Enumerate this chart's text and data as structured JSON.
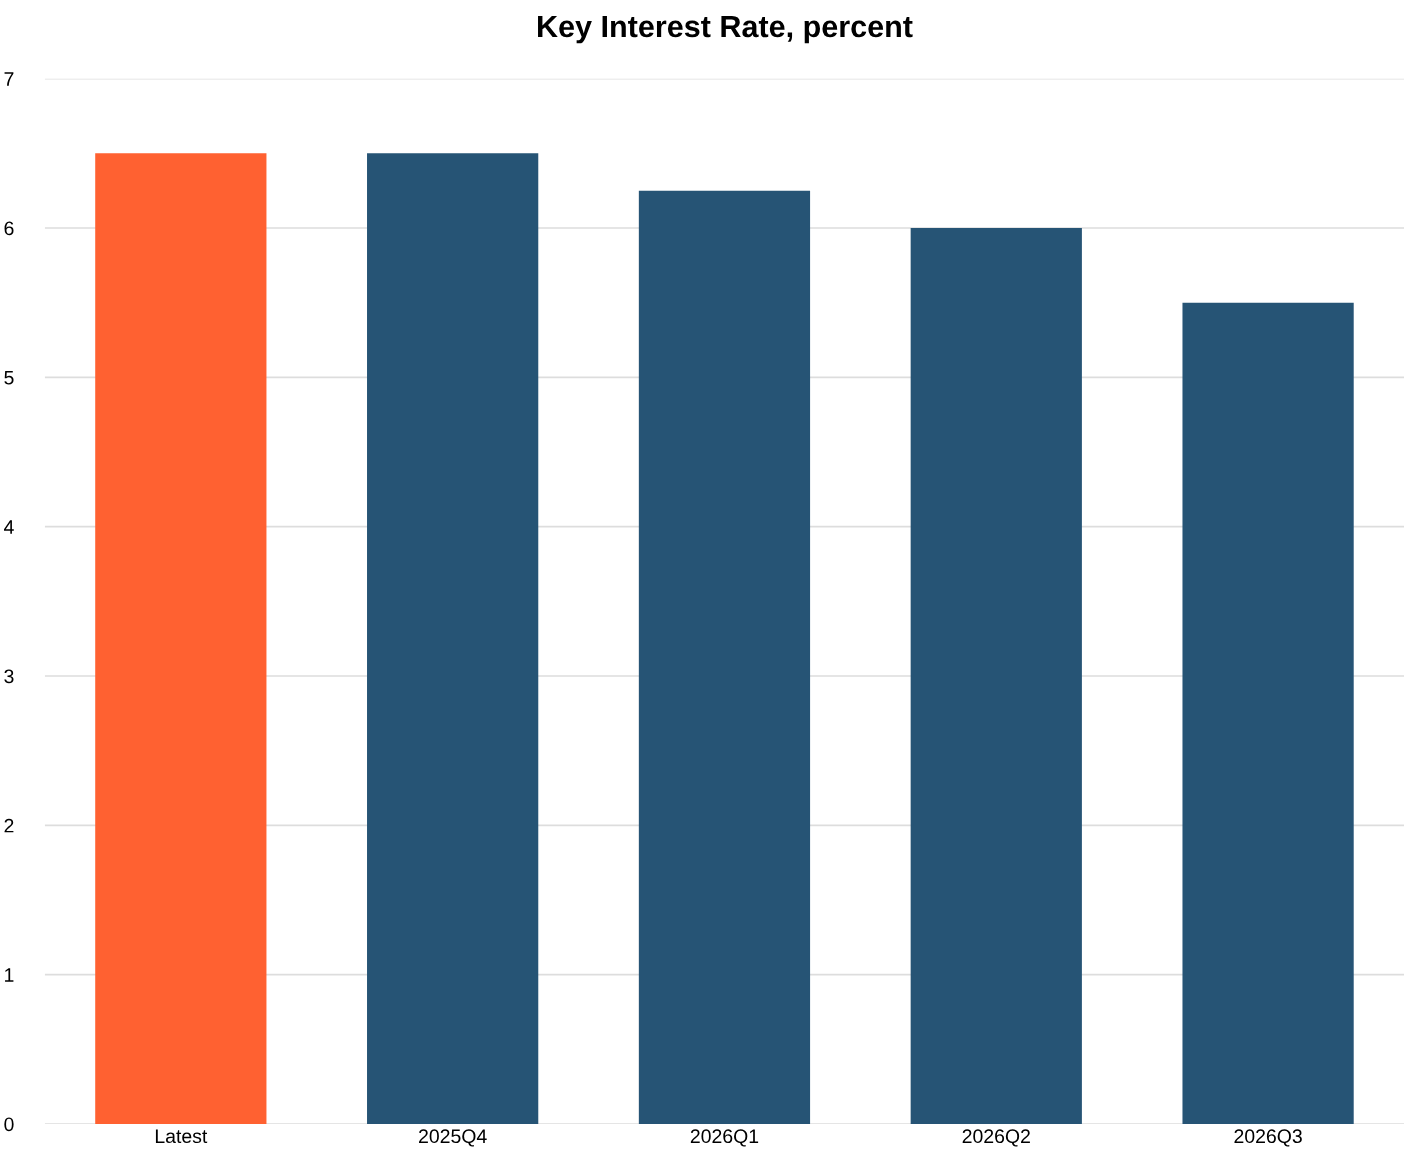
{
  "chart_data": {
    "type": "bar",
    "title": "Key Interest Rate, percent",
    "categories": [
      "Latest",
      "2025Q4",
      "2026Q1",
      "2026Q2",
      "2026Q3"
    ],
    "values": [
      6.5,
      6.5,
      6.25,
      6.0,
      5.5
    ],
    "colors": [
      "#ff6131",
      "#265475",
      "#265475",
      "#265475",
      "#265475"
    ],
    "ylim": [
      0,
      7
    ],
    "yticks": [
      0,
      1,
      2,
      3,
      4,
      5,
      6,
      7
    ],
    "grid": "y"
  }
}
